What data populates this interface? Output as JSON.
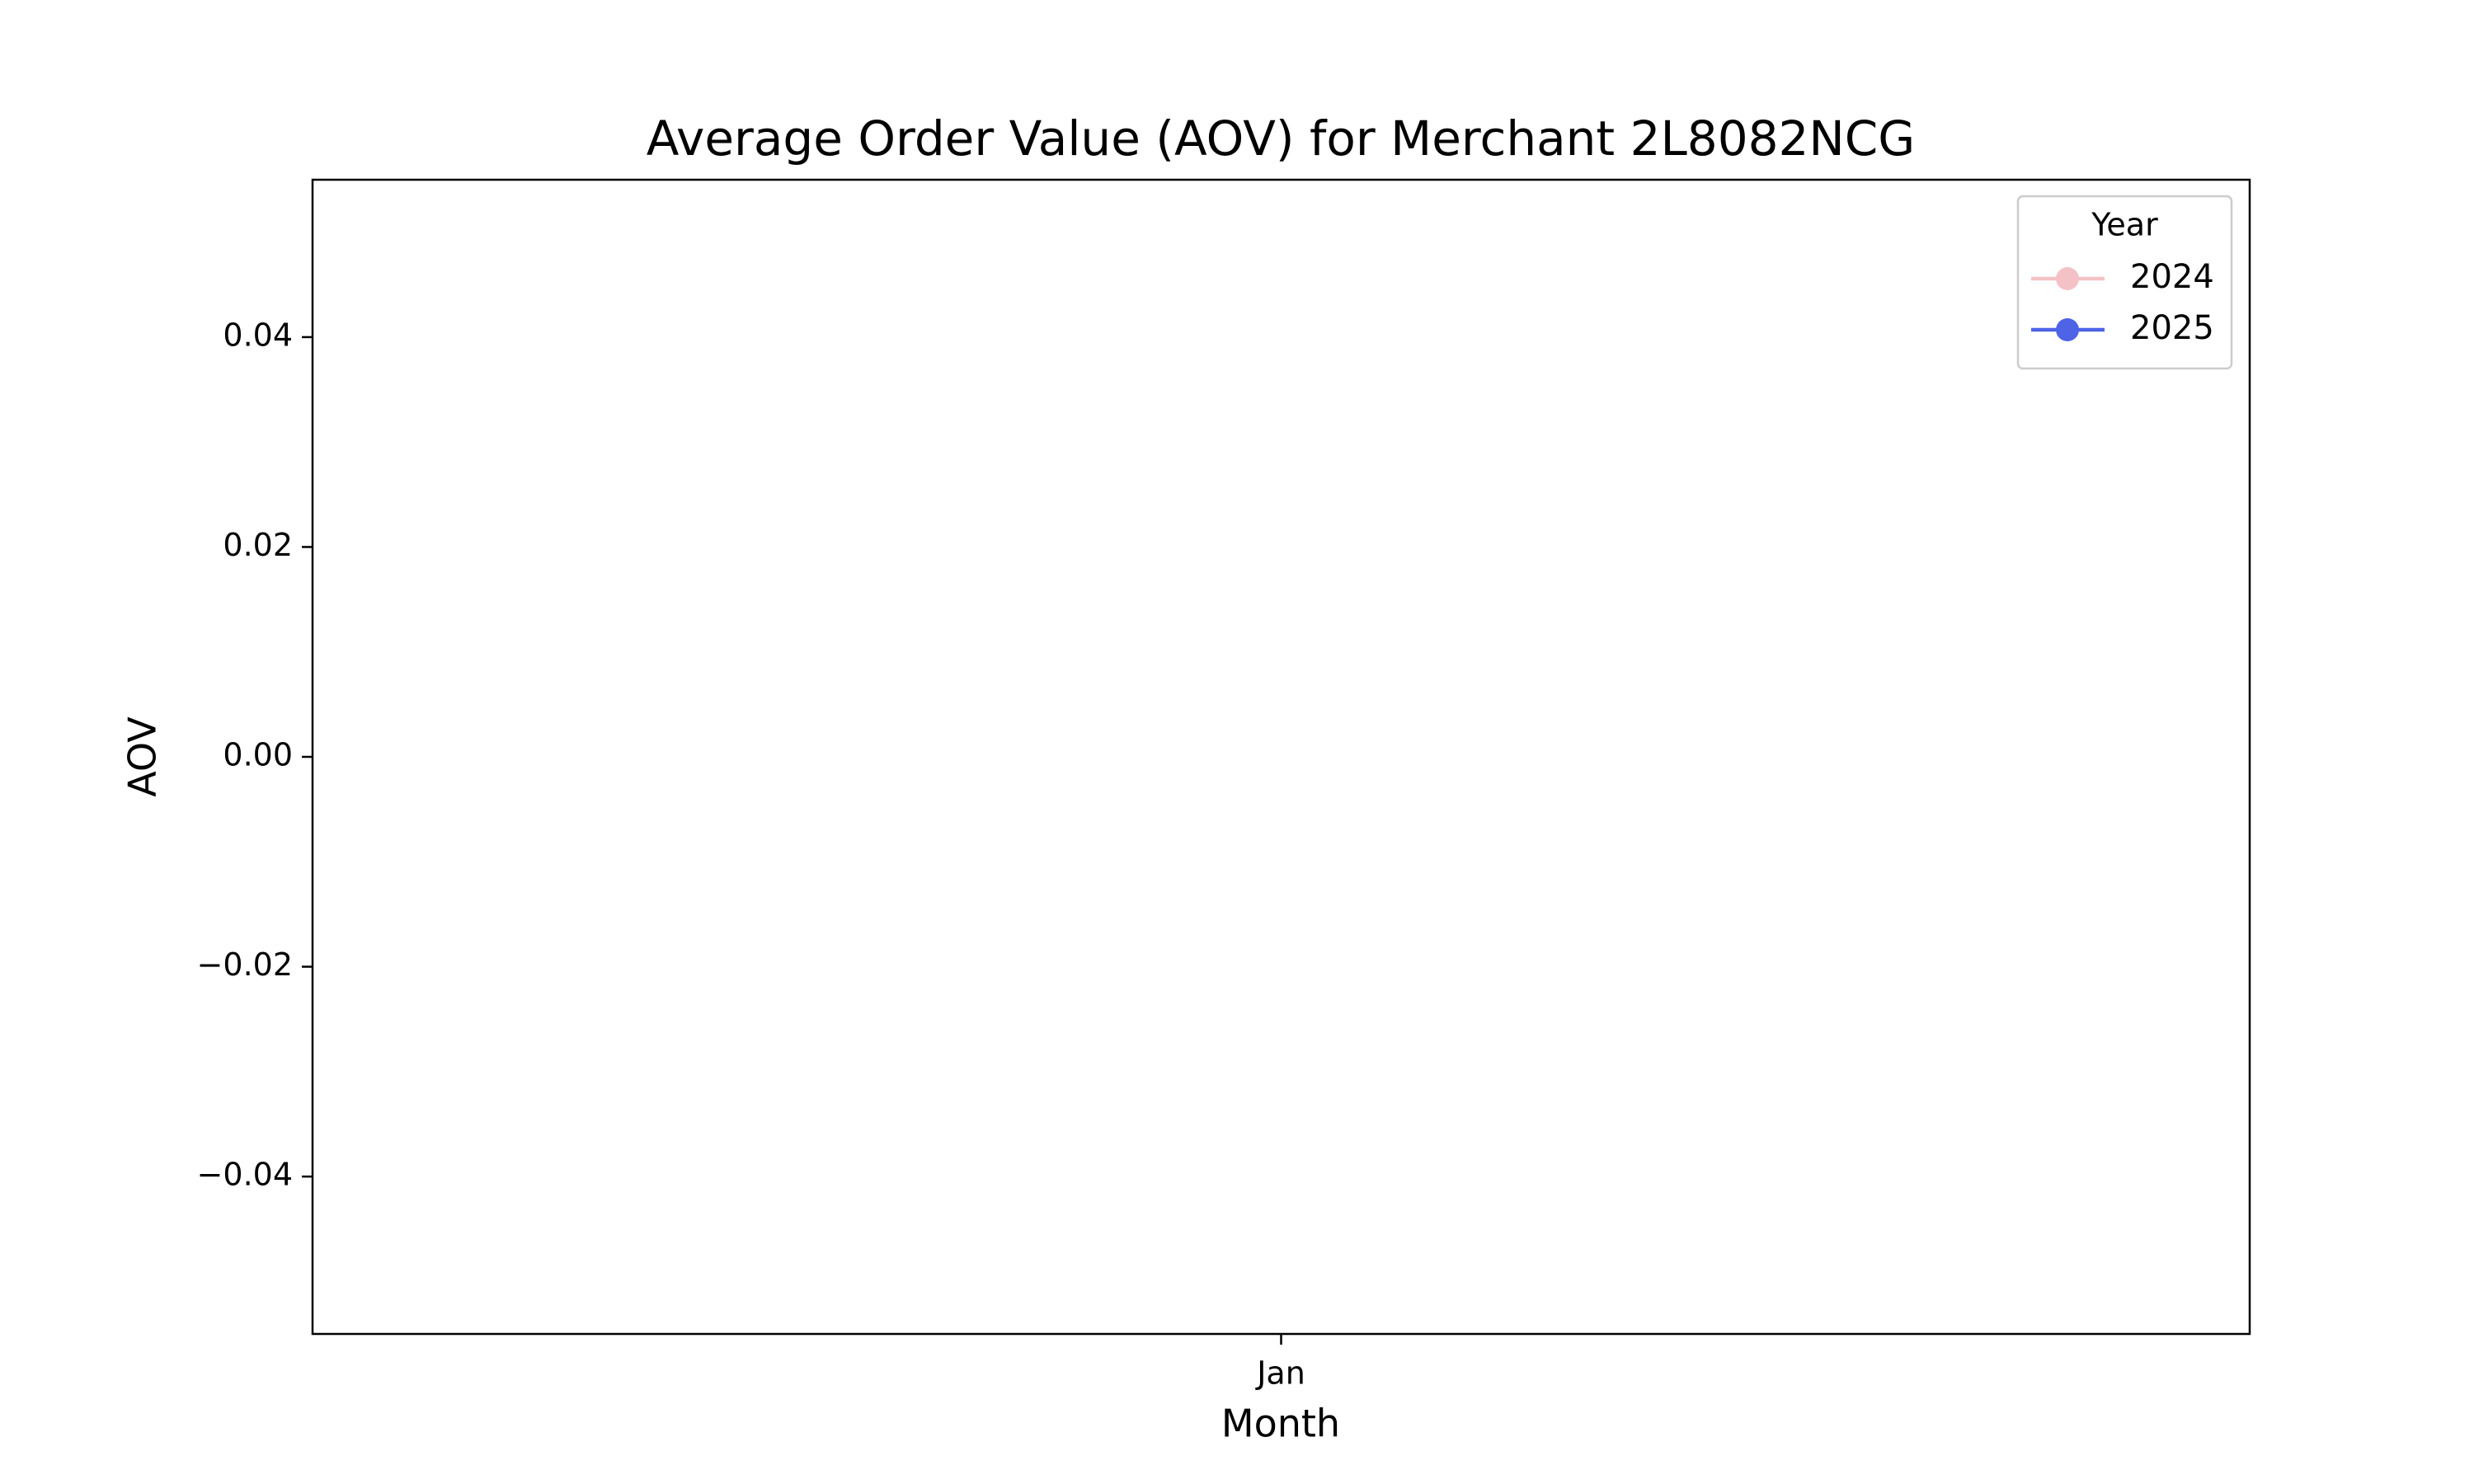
{
  "chart_data": {
    "type": "line",
    "title": "Average Order Value (AOV) for Merchant 2L8082NCG",
    "xlabel": "Month",
    "ylabel": "AOV",
    "categories": [
      "Jan"
    ],
    "series": [
      {
        "name": "2024",
        "color": "#f4c2c6",
        "values": [
          null
        ]
      },
      {
        "name": "2025",
        "color": "#4f63e6",
        "values": [
          null
        ]
      }
    ],
    "ylim": [
      -0.055,
      0.055
    ],
    "yticks": [
      {
        "value": -0.04,
        "label": "−0.04"
      },
      {
        "value": -0.02,
        "label": "−0.02"
      },
      {
        "value": 0,
        "label": "0.00"
      },
      {
        "value": 0.02,
        "label": "0.02"
      },
      {
        "value": 0.04,
        "label": "0.04"
      }
    ],
    "legend_title": "Year",
    "legend_position": "upper right",
    "grid": false
  }
}
